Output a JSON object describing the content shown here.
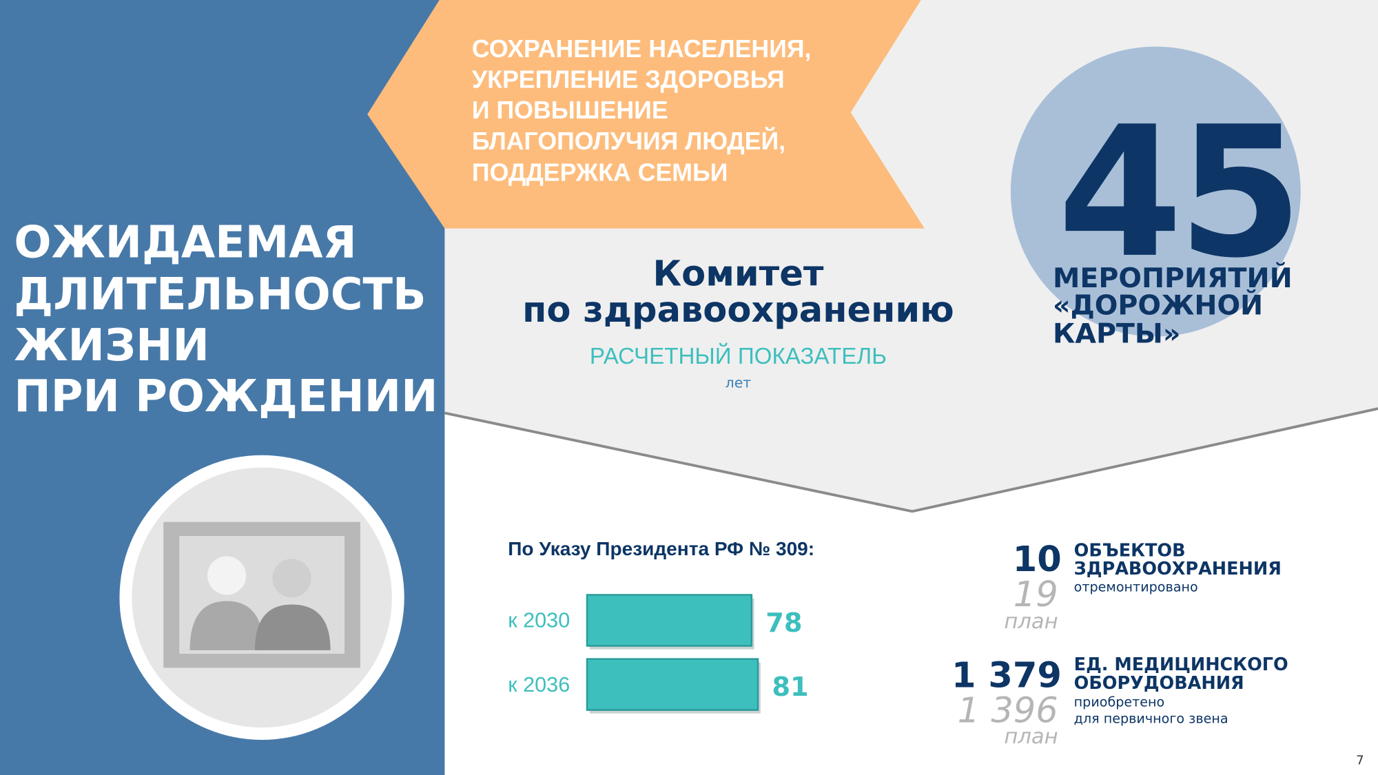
{
  "left_title": [
    "ОЖИДАЕМАЯ",
    "ДЛИТЕЛЬНОСТЬ",
    "ЖИЗНИ",
    "ПРИ РОЖДЕНИИ"
  ],
  "banner": [
    "СОХРАНЕНИЕ НАСЕЛЕНИЯ,",
    "УКРЕПЛЕНИЕ ЗДОРОВЬЯ",
    "И ПОВЫШЕНИЕ",
    "БЛАГОПОЛУЧИЯ ЛЮДЕЙ,",
    "ПОДДЕРЖКА СЕМЬИ"
  ],
  "committee": [
    "Комитет",
    "по здравоохранению"
  ],
  "indicator": "РАСЧЕТНЫЙ ПОКАЗАТЕЛЬ",
  "unit": "лет",
  "roadmap": {
    "count": 45,
    "label": [
      "МЕРОПРИЯТИЙ",
      "«ДОРОЖНОЙ",
      "КАРТЫ»"
    ]
  },
  "decree": {
    "title": "По Указу Президента РФ № 309:",
    "categories": [
      "к 2030",
      "к 2036"
    ],
    "values": [
      78,
      81
    ],
    "color": "#3dbfbd"
  },
  "stats": [
    {
      "value": 10,
      "plan": 19,
      "plan_word": "план",
      "title": [
        "ОБЪЕКТОВ",
        "ЗДРАВООХРАНЕНИЯ"
      ],
      "note": [
        "отремонтировано"
      ]
    },
    {
      "value": {
        "value": 1379,
        "label": "1 379"
      },
      "plan": {
        "value": 1396,
        "label": "1 396"
      },
      "plan_word": "план",
      "title": [
        "ЕД. МЕДИЦИНСКОГО",
        "ОБОРУДОВАНИЯ"
      ],
      "note": [
        "приобретено",
        "для первичного звена"
      ]
    }
  ],
  "page": 7
}
